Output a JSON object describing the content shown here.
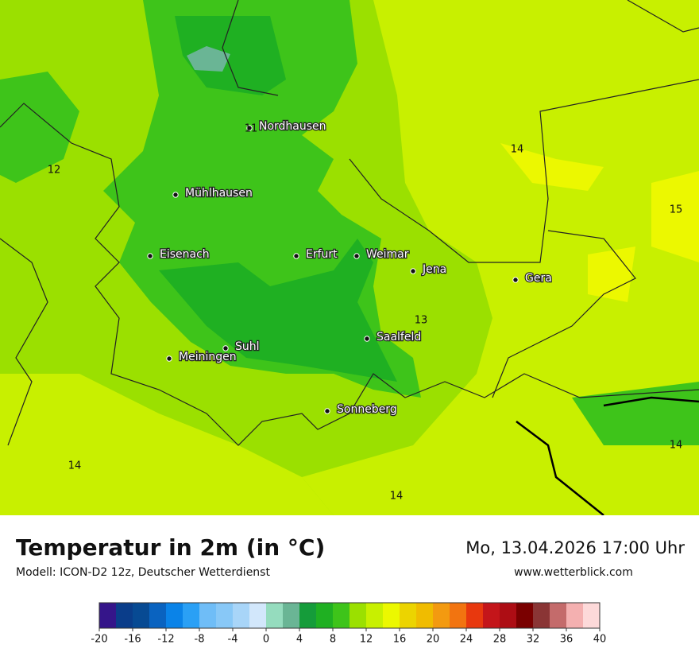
{
  "map": {
    "cities": [
      "Nordhausen",
      "Mühlhausen",
      "Eisenach",
      "Erfurt",
      "Weimar",
      "Jena",
      "Gera",
      "Saalfeld",
      "Suhl",
      "Meiningen",
      "Sonneberg"
    ],
    "value_labels": [
      11,
      12,
      14,
      15,
      13,
      14,
      14,
      14
    ]
  },
  "footer": {
    "title": "Temperatur in 2m (in °C)",
    "model": "Modell: ICON-D2 12z, Deutscher Wetterdienst",
    "datetime": "Mo, 13.04.2026 17:00 Uhr",
    "website": "www.wetterblick.com"
  },
  "colorbar": {
    "colors": [
      "#35158a",
      "#0a3d8a",
      "#074a93",
      "#0a63c0",
      "#0a83e8",
      "#2aa0f5",
      "#6fbdf7",
      "#88c8f7",
      "#a8d5f8",
      "#d2e7fb",
      "#95dcbe",
      "#6ab595",
      "#159c3a",
      "#1fb022",
      "#3ec41a",
      "#9be000",
      "#c8f000",
      "#ecf800",
      "#ecd400",
      "#f0bc00",
      "#f39a10",
      "#f27410",
      "#e8380e",
      "#c4151a",
      "#ad0d14",
      "#7a0000",
      "#8a3535",
      "#c46b6b",
      "#f4b0b0",
      "#fdd9d9"
    ],
    "ticks": [
      -20,
      -16,
      -12,
      -8,
      -4,
      0,
      4,
      8,
      12,
      16,
      20,
      24,
      28,
      32,
      36,
      40
    ]
  }
}
